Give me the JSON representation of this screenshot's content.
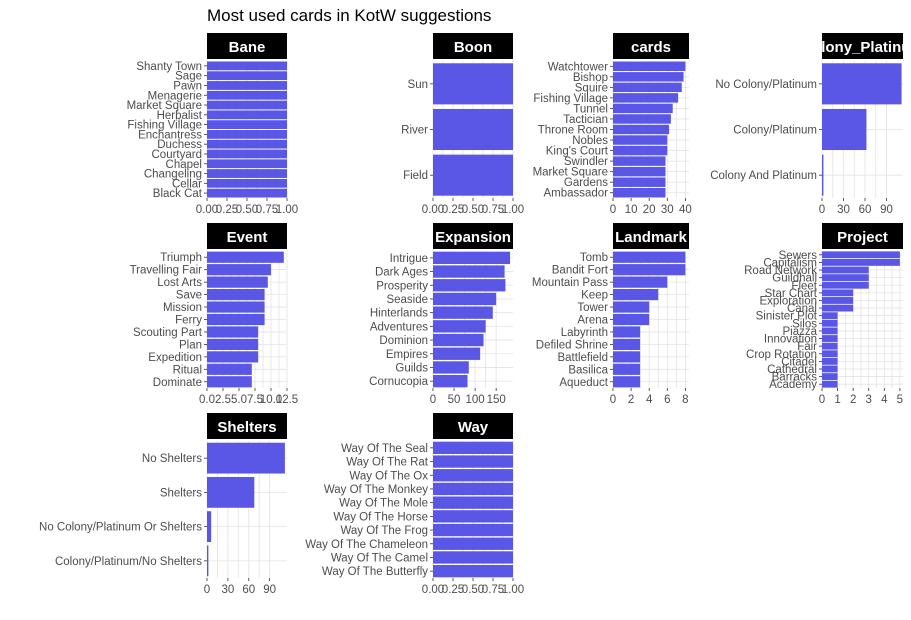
{
  "title": "Most used cards in KotW suggestions",
  "colors": {
    "bar": "#5b57e6",
    "strip": "#000000",
    "strip_text": "#ffffff",
    "grid": "#e3e3e3",
    "text": "#4d4d4d"
  },
  "chart_data": [
    {
      "type": "bar",
      "orientation": "horizontal",
      "facet": "Bane",
      "categories": [
        "Shanty Town",
        "Sage",
        "Pawn",
        "Menagerie",
        "Market Square",
        "Herbalist",
        "Fishing Village",
        "Enchantress",
        "Duchess",
        "Courtyard",
        "Chapel",
        "Changeling",
        "Cellar",
        "Black Cat"
      ],
      "values": [
        1,
        1,
        1,
        1,
        1,
        1,
        1,
        1,
        1,
        1,
        1,
        1,
        1,
        1
      ],
      "xlim": [
        0,
        1
      ],
      "xticks": [
        "0.00",
        "0.25",
        "0.50",
        "0.75",
        "1.00"
      ],
      "xtick_values": [
        0,
        0.25,
        0.5,
        0.75,
        1
      ]
    },
    {
      "type": "bar",
      "orientation": "horizontal",
      "facet": "Boon",
      "categories": [
        "Sun",
        "River",
        "Field"
      ],
      "values": [
        1,
        1,
        1
      ],
      "xlim": [
        0,
        1
      ],
      "xticks": [
        "0.00",
        "0.25",
        "0.50",
        "0.75",
        "1.00"
      ],
      "xtick_values": [
        0,
        0.25,
        0.5,
        0.75,
        1
      ]
    },
    {
      "type": "bar",
      "orientation": "horizontal",
      "facet": "cards",
      "categories": [
        "Watchtower",
        "Bishop",
        "Squire",
        "Fishing Village",
        "Tunnel",
        "Tactician",
        "Throne Room",
        "Nobles",
        "King's Court",
        "Swindler",
        "Market Square",
        "Gardens",
        "Ambassador"
      ],
      "values": [
        40,
        39,
        38,
        36,
        33,
        32,
        31,
        30,
        30,
        29,
        29,
        29,
        29
      ],
      "xlim": [
        0,
        42
      ],
      "xticks": [
        "0",
        "10",
        "20",
        "30",
        "40"
      ],
      "xtick_values": [
        0,
        10,
        20,
        30,
        40
      ]
    },
    {
      "type": "bar",
      "orientation": "horizontal",
      "facet": "Colony_Platinum",
      "categories": [
        "No Colony/Platinum",
        "Colony/Platinum",
        "Colony And Platinum"
      ],
      "values": [
        111,
        62,
        2
      ],
      "xlim": [
        0,
        113
      ],
      "xticks": [
        "0",
        "30",
        "60",
        "90"
      ],
      "xtick_values": [
        0,
        30,
        60,
        90
      ]
    },
    {
      "type": "bar",
      "orientation": "horizontal",
      "facet": "Event",
      "categories": [
        "Triumph",
        "Travelling Fair",
        "Lost Arts",
        "Save",
        "Mission",
        "Ferry",
        "Scouting Part",
        "Plan",
        "Expedition",
        "Ritual",
        "Dominate"
      ],
      "values": [
        12,
        10,
        9.5,
        9,
        9,
        9,
        8,
        8,
        8,
        7,
        7
      ],
      "xlim": [
        0,
        12.5
      ],
      "xticks": [
        "0.0",
        "2.5",
        "5.0",
        "7.5",
        "10.0",
        "12.5"
      ],
      "xtick_values": [
        0,
        2.5,
        5,
        7.5,
        10,
        12.5
      ]
    },
    {
      "type": "bar",
      "orientation": "horizontal",
      "facet": "Expansion",
      "categories": [
        "Intrigue",
        "Dark Ages",
        "Prosperity",
        "Seaside",
        "Hinterlands",
        "Adventures",
        "Dominion",
        "Empires",
        "Guilds",
        "Cornucopia"
      ],
      "values": [
        183,
        170,
        172,
        150,
        142,
        125,
        120,
        112,
        85,
        82
      ],
      "xlim": [
        0,
        190
      ],
      "xticks": [
        "0",
        "50",
        "100",
        "150"
      ],
      "xtick_values": [
        0,
        50,
        100,
        150
      ]
    },
    {
      "type": "bar",
      "orientation": "horizontal",
      "facet": "Landmark",
      "categories": [
        "Tomb",
        "Bandit Fort",
        "Mountain Pass",
        "Keep",
        "Tower",
        "Arena",
        "Labyrinth",
        "Defiled Shrine",
        "Battlefield",
        "Basilica",
        "Aqueduct"
      ],
      "values": [
        8,
        8,
        6,
        5,
        4,
        4,
        3,
        3,
        3,
        3,
        3
      ],
      "xlim": [
        0,
        8.4
      ],
      "xticks": [
        "0",
        "2",
        "4",
        "6",
        "8"
      ],
      "xtick_values": [
        0,
        2,
        4,
        6,
        8
      ]
    },
    {
      "type": "bar",
      "orientation": "horizontal",
      "facet": "Project",
      "categories": [
        "Sewers",
        "Capitalism",
        "Road Network",
        "Guildhall",
        "Fleet",
        "Star Chart",
        "Exploration",
        "Canal",
        "Sinister Plot",
        "Silos",
        "Piazza",
        "Innovation",
        "Fair",
        "Crop Rotation",
        "Citadel",
        "Cathedral",
        "Barracks",
        "Academy"
      ],
      "values": [
        5,
        5,
        3,
        3,
        3,
        2,
        2,
        2,
        1,
        1,
        1,
        1,
        1,
        1,
        1,
        1,
        1,
        1
      ],
      "xlim": [
        0,
        5.2
      ],
      "xticks": [
        "0",
        "1",
        "2",
        "3",
        "4",
        "5"
      ],
      "xtick_values": [
        0,
        1,
        2,
        3,
        4,
        5
      ]
    },
    {
      "type": "bar",
      "orientation": "horizontal",
      "facet": "Shelters",
      "categories": [
        "No Shelters",
        "Shelters",
        "No Colony/Platinum Or Shelters",
        "Colony/Platinum/No Shelters"
      ],
      "values": [
        112,
        68,
        6,
        2
      ],
      "xlim": [
        0,
        115
      ],
      "xticks": [
        "0",
        "30",
        "60",
        "90"
      ],
      "xtick_values": [
        0,
        30,
        60,
        90
      ]
    },
    {
      "type": "bar",
      "orientation": "horizontal",
      "facet": "Way",
      "categories": [
        "Way Of The Seal",
        "Way Of The Rat",
        "Way Of The Ox",
        "Way Of The Monkey",
        "Way Of The Mole",
        "Way Of The Horse",
        "Way Of The Frog",
        "Way Of The Chameleon",
        "Way Of The Camel",
        "Way Of The Butterfly"
      ],
      "values": [
        1,
        1,
        1,
        1,
        1,
        1,
        1,
        1,
        1,
        1
      ],
      "xlim": [
        0,
        1
      ],
      "xticks": [
        "0.00",
        "0.25",
        "0.50",
        "0.75",
        "1.00"
      ],
      "xtick_values": [
        0,
        0.25,
        0.5,
        0.75,
        1
      ]
    }
  ]
}
